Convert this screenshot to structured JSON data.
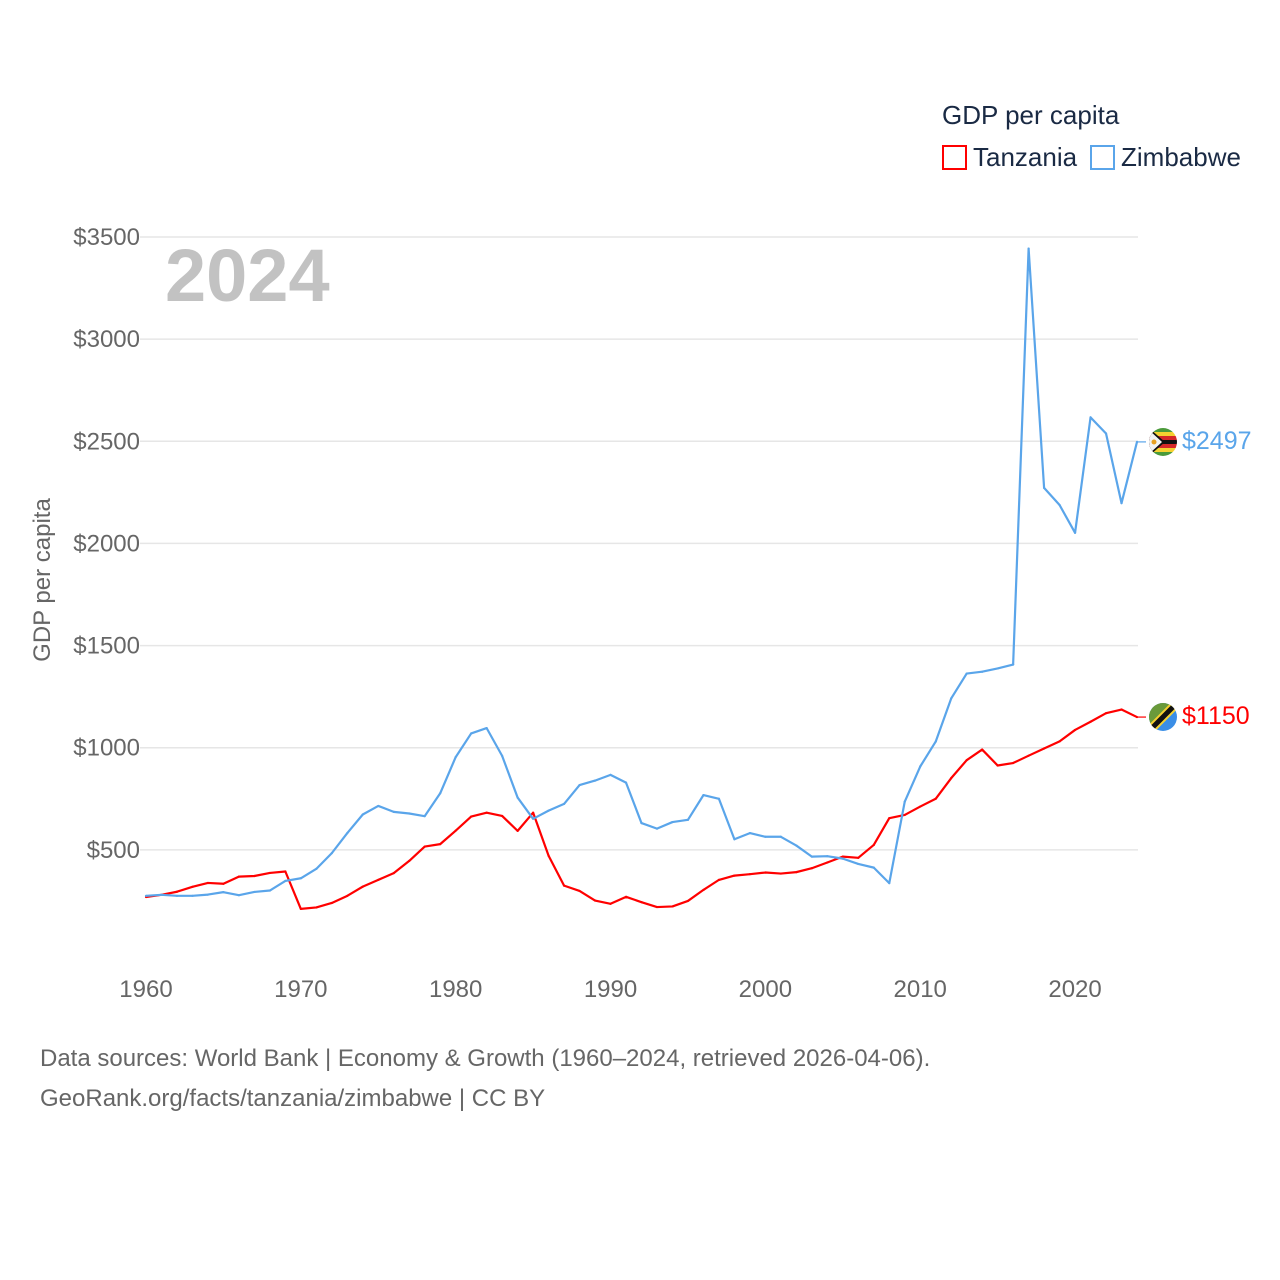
{
  "chart_data": {
    "type": "line",
    "title": "GDP per capita",
    "year_label": "2024",
    "xlabel": "",
    "ylabel": "GDP per capita",
    "xlim": [
      1960,
      2024
    ],
    "ylim": [
      0,
      3500
    ],
    "x_ticks": [
      "1960",
      "1970",
      "1980",
      "1990",
      "2000",
      "2010",
      "2020"
    ],
    "y_ticks": [
      {
        "value": 500,
        "label": "$500"
      },
      {
        "value": 1000,
        "label": "$1000"
      },
      {
        "value": 1500,
        "label": "$1500"
      },
      {
        "value": 2000,
        "label": "$2000"
      },
      {
        "value": 2500,
        "label": "$2500"
      },
      {
        "value": 3000,
        "label": "$3000"
      },
      {
        "value": 3500,
        "label": "$3500"
      }
    ],
    "grid": true,
    "legend_placement": "top-right",
    "x": [
      1960,
      1961,
      1962,
      1963,
      1964,
      1965,
      1966,
      1967,
      1968,
      1969,
      1970,
      1971,
      1972,
      1973,
      1974,
      1975,
      1976,
      1977,
      1978,
      1979,
      1980,
      1981,
      1982,
      1983,
      1984,
      1985,
      1986,
      1987,
      1988,
      1989,
      1990,
      1991,
      1992,
      1993,
      1994,
      1995,
      1996,
      1997,
      1998,
      1999,
      2000,
      2001,
      2002,
      2003,
      2004,
      2005,
      2006,
      2007,
      2008,
      2009,
      2010,
      2011,
      2012,
      2013,
      2014,
      2015,
      2016,
      2017,
      2018,
      2019,
      2020,
      2021,
      2022,
      2023,
      2024
    ],
    "series": [
      {
        "name": "Tanzania",
        "color": "#ff0000",
        "end_label": "$1150",
        "values": [
          269,
          280,
          295,
          319,
          338,
          334,
          369,
          372,
          387,
          394,
          211,
          218,
          240,
          275,
          320,
          353,
          386,
          446,
          516,
          528,
          594,
          663,
          682,
          666,
          593,
          682,
          471,
          325,
          299,
          252,
          236,
          270,
          244,
          220,
          223,
          250,
          304,
          353,
          374,
          381,
          389,
          384,
          391,
          410,
          438,
          467,
          461,
          524,
          655,
          671,
          712,
          750,
          851,
          939,
          991,
          913,
          925,
          961,
          996,
          1031,
          1087,
          1127,
          1169,
          1187,
          1150
        ]
      },
      {
        "name": "Zimbabwe",
        "color": "#5aa5ea",
        "end_label": "$2497",
        "values": [
          275,
          280,
          275,
          275,
          281,
          293,
          278,
          294,
          301,
          348,
          361,
          407,
          484,
          582,
          673,
          715,
          686,
          678,
          665,
          777,
          954,
          1070,
          1096,
          960,
          756,
          652,
          692,
          725,
          817,
          839,
          867,
          829,
          631,
          604,
          636,
          647,
          768,
          750,
          552,
          582,
          564,
          564,
          521,
          467,
          469,
          457,
          431,
          413,
          337,
          736,
          908,
          1030,
          1241,
          1363,
          1372,
          1388,
          1407,
          3443,
          2272,
          2188,
          2052,
          2617,
          2538,
          2197,
          2497
        ]
      }
    ]
  },
  "footer": {
    "line1": "Data sources: World Bank | Economy & Growth (1960–2024, retrieved 2026-04-06).",
    "line2": "GeoRank.org/facts/tanzania/zimbabwe | CC BY"
  }
}
